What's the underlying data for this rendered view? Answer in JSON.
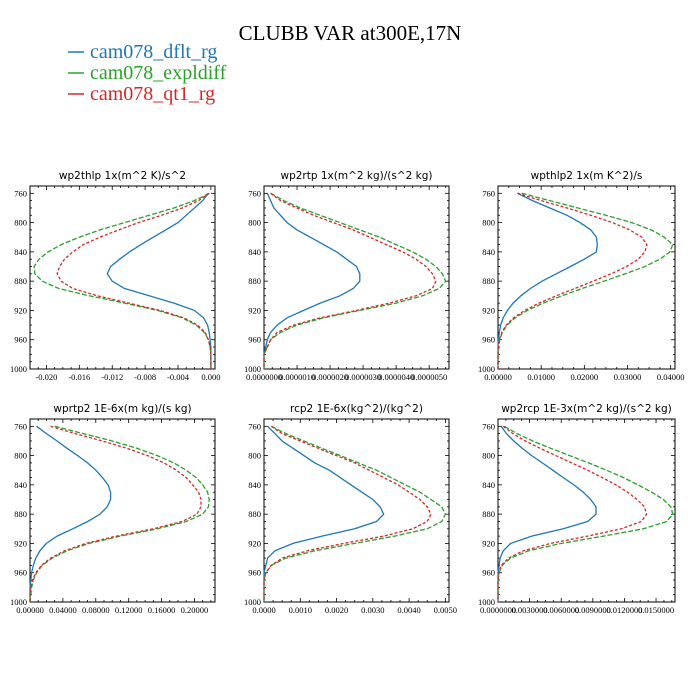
{
  "title": "CLUBB VAR at300E,17N",
  "legend": [
    {
      "label": "cam078_dflt_rg",
      "color": "#1f77b4"
    },
    {
      "label": "cam078_expldiff",
      "color": "#2ca02c"
    },
    {
      "label": "cam078_qt1_rg",
      "color": "#d62728"
    }
  ],
  "chart_data": [
    {
      "type": "line",
      "title": "wp2thlp  1x(m^2 K)/s^2",
      "xlim": [
        -0.022,
        0.0005
      ],
      "ylim": [
        1000,
        750
      ],
      "xticks": [
        -0.02,
        -0.016,
        -0.012,
        -0.008,
        -0.004,
        0.0
      ],
      "xtick_labels": [
        "-0.020",
        "-0.016",
        "-0.012",
        "-0.008",
        "-0.004",
        "0.000"
      ],
      "yticks": [
        760,
        800,
        840,
        880,
        920,
        960,
        1000
      ],
      "y": [
        760,
        770,
        780,
        790,
        800,
        810,
        820,
        830,
        840,
        850,
        860,
        870,
        880,
        890,
        900,
        910,
        920,
        930,
        940,
        950,
        960,
        970,
        980,
        990,
        1000
      ],
      "series": [
        {
          "name": "cam078_dflt_rg",
          "color": "#1f77b4",
          "dash": "",
          "values": [
            -0.0003,
            -0.001,
            -0.002,
            -0.003,
            -0.004,
            -0.0055,
            -0.007,
            -0.0085,
            -0.0099,
            -0.0111,
            -0.0122,
            -0.0126,
            -0.012,
            -0.0105,
            -0.0075,
            -0.0045,
            -0.002,
            -0.0009,
            -0.0004,
            -0.0002,
            -0.0001,
            0.0,
            0.0,
            0.0,
            0.0
          ]
        },
        {
          "name": "cam078_expldiff",
          "color": "#2ca02c",
          "dash": "5,2",
          "values": [
            -0.0002,
            -0.002,
            -0.0045,
            -0.0075,
            -0.0105,
            -0.0135,
            -0.016,
            -0.0182,
            -0.0198,
            -0.0209,
            -0.0215,
            -0.0214,
            -0.0205,
            -0.0185,
            -0.0148,
            -0.0105,
            -0.0065,
            -0.0035,
            -0.0018,
            -0.0008,
            -0.0003,
            -0.0001,
            0.0,
            0.0,
            0.0
          ]
        },
        {
          "name": "cam078_qt1_rg",
          "color": "#d62728",
          "dash": "3,2",
          "values": [
            -0.0002,
            -0.0015,
            -0.0035,
            -0.006,
            -0.0088,
            -0.0112,
            -0.0135,
            -0.0155,
            -0.0168,
            -0.0178,
            -0.0184,
            -0.0187,
            -0.0182,
            -0.0168,
            -0.0138,
            -0.01,
            -0.0062,
            -0.0033,
            -0.0016,
            -0.0007,
            -0.0003,
            -0.0001,
            0.0,
            0.0,
            0.0
          ]
        }
      ]
    },
    {
      "type": "line",
      "title": "wp2rtp  1x(m^2 kg)/(s^2 kg)",
      "xlim": [
        0.0,
        5.6e-06
      ],
      "ylim": [
        1000,
        750
      ],
      "xticks": [
        0.0,
        1e-06,
        2e-06,
        3e-06,
        4e-06,
        5e-06
      ],
      "xtick_labels": [
        "0.0000000",
        "0.0000010",
        "0.0000020",
        "0.0000030",
        "0.0000040",
        "0.0000050"
      ],
      "yticks": [
        760,
        800,
        840,
        880,
        920,
        960,
        1000
      ],
      "y": [
        760,
        770,
        780,
        790,
        800,
        810,
        820,
        830,
        840,
        850,
        860,
        870,
        880,
        890,
        900,
        910,
        920,
        930,
        940,
        950,
        960,
        970,
        980,
        990,
        1000
      ],
      "series": [
        {
          "name": "cam078_dflt_rg",
          "color": "#1f77b4",
          "dash": "",
          "values": [
            1e-07,
            2e-07,
            3e-07,
            5e-07,
            7e-07,
            1e-06,
            1.4e-06,
            1.8e-06,
            2.2e-06,
            2.5e-06,
            2.8e-06,
            2.9e-06,
            2.9e-06,
            2.7e-06,
            2.3e-06,
            1.7e-06,
            1.2e-06,
            7e-07,
            4e-07,
            2e-07,
            1e-07,
            5e-08,
            0.0,
            0.0,
            0.0
          ]
        },
        {
          "name": "cam078_expldiff",
          "color": "#2ca02c",
          "dash": "5,2",
          "values": [
            2e-07,
            6e-07,
            1.1e-06,
            1.7e-06,
            2.3e-06,
            2.9e-06,
            3.5e-06,
            4e-06,
            4.5e-06,
            4.9e-06,
            5.2e-06,
            5.4e-06,
            5.5e-06,
            5.3e-06,
            4.8e-06,
            4e-06,
            2.9e-06,
            1.8e-06,
            1e-06,
            5e-07,
            2e-07,
            1e-07,
            0.0,
            0.0,
            0.0
          ]
        },
        {
          "name": "cam078_qt1_rg",
          "color": "#d62728",
          "dash": "3,2",
          "values": [
            2e-07,
            5e-07,
            1e-06,
            1.5e-06,
            2.1e-06,
            2.7e-06,
            3.2e-06,
            3.7e-06,
            4.2e-06,
            4.6e-06,
            4.9e-06,
            5.1e-06,
            5.2e-06,
            5.1e-06,
            4.6e-06,
            3.8e-06,
            2.8e-06,
            1.7e-06,
            9e-07,
            4e-07,
            2e-07,
            1e-07,
            0.0,
            0.0,
            0.0
          ]
        }
      ]
    },
    {
      "type": "line",
      "title": "wpthlp2  1x(m K^2)/s",
      "xlim": [
        0.0,
        0.041
      ],
      "ylim": [
        1000,
        750
      ],
      "xticks": [
        0.0,
        0.01,
        0.02,
        0.03,
        0.04
      ],
      "xtick_labels": [
        "0.00000",
        "0.01000",
        "0.02000",
        "0.03000",
        "0.04000"
      ],
      "yticks": [
        760,
        800,
        840,
        880,
        920,
        960,
        1000
      ],
      "y": [
        760,
        770,
        780,
        790,
        800,
        810,
        820,
        830,
        840,
        850,
        860,
        870,
        880,
        890,
        900,
        910,
        920,
        930,
        940,
        950,
        960,
        970,
        980,
        990,
        1000
      ],
      "series": [
        {
          "name": "cam078_dflt_rg",
          "color": "#1f77b4",
          "dash": "",
          "values": [
            0.0045,
            0.008,
            0.012,
            0.016,
            0.019,
            0.0215,
            0.0228,
            0.023,
            0.0228,
            0.02,
            0.0168,
            0.0135,
            0.0102,
            0.0075,
            0.0053,
            0.0035,
            0.0022,
            0.0012,
            0.0006,
            0.0003,
            0.0001,
            0.0,
            0.0,
            0.0,
            0.0
          ]
        },
        {
          "name": "cam078_expldiff",
          "color": "#2ca02c",
          "dash": "5,2",
          "values": [
            0.0055,
            0.012,
            0.0185,
            0.025,
            0.031,
            0.0355,
            0.0385,
            0.0405,
            0.0398,
            0.0375,
            0.034,
            0.0295,
            0.0245,
            0.0195,
            0.0148,
            0.0105,
            0.0068,
            0.004,
            0.0021,
            0.001,
            0.0004,
            0.0001,
            0.0,
            0.0,
            0.0
          ]
        },
        {
          "name": "cam078_qt1_rg",
          "color": "#d62728",
          "dash": "3,2",
          "values": [
            0.0045,
            0.01,
            0.016,
            0.0215,
            0.0265,
            0.0305,
            0.0333,
            0.0345,
            0.034,
            0.0325,
            0.0298,
            0.0262,
            0.022,
            0.0178,
            0.0135,
            0.0095,
            0.0062,
            0.0036,
            0.0019,
            0.0009,
            0.0003,
            0.0001,
            0.0,
            0.0,
            0.0
          ]
        }
      ]
    },
    {
      "type": "line",
      "title": "wprtp2  1E-6x(m kg)/(s kg)",
      "xlim": [
        0.0,
        0.225
      ],
      "ylim": [
        1000,
        750
      ],
      "xticks": [
        0.0,
        0.04,
        0.08,
        0.12,
        0.16,
        0.2
      ],
      "xtick_labels": [
        "0.00000",
        "0.04000",
        "0.08000",
        "0.12000",
        "0.16000",
        "0.20000"
      ],
      "yticks": [
        760,
        800,
        840,
        880,
        920,
        960,
        1000
      ],
      "y": [
        760,
        770,
        780,
        790,
        800,
        810,
        820,
        830,
        840,
        850,
        860,
        870,
        880,
        890,
        900,
        910,
        920,
        930,
        940,
        950,
        960,
        970,
        980,
        990,
        1000
      ],
      "series": [
        {
          "name": "cam078_dflt_rg",
          "color": "#1f77b4",
          "dash": "",
          "values": [
            0.008,
            0.02,
            0.033,
            0.045,
            0.058,
            0.07,
            0.08,
            0.088,
            0.095,
            0.098,
            0.098,
            0.094,
            0.085,
            0.07,
            0.052,
            0.033,
            0.02,
            0.012,
            0.007,
            0.004,
            0.002,
            0.001,
            0.0,
            0.0,
            0.0
          ]
        },
        {
          "name": "cam078_expldiff",
          "color": "#2ca02c",
          "dash": "5,2",
          "values": [
            0.03,
            0.065,
            0.1,
            0.13,
            0.155,
            0.175,
            0.19,
            0.202,
            0.21,
            0.216,
            0.218,
            0.217,
            0.21,
            0.19,
            0.155,
            0.11,
            0.072,
            0.045,
            0.027,
            0.015,
            0.008,
            0.004,
            0.002,
            0.001,
            0.0
          ]
        },
        {
          "name": "cam078_qt1_rg",
          "color": "#d62728",
          "dash": "3,2",
          "values": [
            0.025,
            0.055,
            0.088,
            0.118,
            0.143,
            0.163,
            0.178,
            0.19,
            0.198,
            0.205,
            0.208,
            0.208,
            0.203,
            0.185,
            0.15,
            0.105,
            0.068,
            0.042,
            0.025,
            0.014,
            0.007,
            0.003,
            0.001,
            0.0,
            0.0
          ]
        }
      ]
    },
    {
      "type": "line",
      "title": "rcp2  1E-6x(kg^2)/(kg^2)",
      "xlim": [
        0.0,
        0.0051
      ],
      "ylim": [
        1000,
        750
      ],
      "xticks": [
        0.0,
        0.001,
        0.002,
        0.003,
        0.004,
        0.005
      ],
      "xtick_labels": [
        "0.0000",
        "0.0010",
        "0.0020",
        "0.0030",
        "0.0040",
        "0.0050"
      ],
      "yticks": [
        760,
        800,
        840,
        880,
        920,
        960,
        1000
      ],
      "y": [
        760,
        770,
        780,
        790,
        800,
        810,
        820,
        830,
        840,
        850,
        860,
        870,
        880,
        890,
        900,
        910,
        920,
        930,
        940,
        950,
        960,
        970,
        980,
        990,
        1000
      ],
      "series": [
        {
          "name": "cam078_dflt_rg",
          "color": "#1f77b4",
          "dash": "",
          "values": [
            0.0001,
            0.0003,
            0.0005,
            0.0008,
            0.0011,
            0.0014,
            0.0018,
            0.0021,
            0.0024,
            0.0027,
            0.003,
            0.0032,
            0.0033,
            0.0031,
            0.0025,
            0.0016,
            0.0008,
            0.0003,
            0.0001,
            5e-05,
            0.0,
            0.0,
            0.0,
            0.0,
            0.0
          ]
        },
        {
          "name": "cam078_expldiff",
          "color": "#2ca02c",
          "dash": "5,2",
          "values": [
            0.0002,
            0.0006,
            0.0011,
            0.0016,
            0.0021,
            0.0026,
            0.0031,
            0.0035,
            0.0039,
            0.0043,
            0.0046,
            0.0049,
            0.005,
            0.0049,
            0.0045,
            0.0036,
            0.0025,
            0.0014,
            0.0006,
            0.0002,
            5e-05,
            0.0,
            0.0,
            0.0,
            0.0
          ]
        },
        {
          "name": "cam078_qt1_rg",
          "color": "#d62728",
          "dash": "3,2",
          "values": [
            0.0002,
            0.0005,
            0.001,
            0.0015,
            0.002,
            0.0025,
            0.0029,
            0.0033,
            0.0037,
            0.004,
            0.0043,
            0.0045,
            0.0046,
            0.0045,
            0.0041,
            0.0033,
            0.0022,
            0.0012,
            0.0005,
            0.0002,
            5e-05,
            0.0,
            0.0,
            0.0,
            0.0
          ]
        }
      ]
    },
    {
      "type": "line",
      "title": "wp2rcp  1E-3x(m^2 kg)/(s^2 kg)",
      "xlim": [
        0.0,
        0.0168
      ],
      "ylim": [
        1000,
        750
      ],
      "xticks": [
        0.0,
        0.003,
        0.006,
        0.009,
        0.012,
        0.015
      ],
      "xtick_labels": [
        "0.0000000",
        "0.0030000",
        "0.0060000",
        "0.0090000",
        "0.0120000",
        "0.0150000"
      ],
      "yticks": [
        760,
        800,
        840,
        880,
        920,
        960,
        1000
      ],
      "y": [
        760,
        770,
        780,
        790,
        800,
        810,
        820,
        830,
        840,
        850,
        860,
        870,
        880,
        890,
        900,
        910,
        920,
        930,
        940,
        950,
        960,
        970,
        980,
        990,
        1000
      ],
      "series": [
        {
          "name": "cam078_dflt_rg",
          "color": "#1f77b4",
          "dash": "",
          "values": [
            0.0003,
            0.0008,
            0.0015,
            0.0023,
            0.0032,
            0.0042,
            0.0052,
            0.0062,
            0.0072,
            0.0081,
            0.0088,
            0.0093,
            0.0093,
            0.0085,
            0.0062,
            0.0032,
            0.0012,
            0.0005,
            0.0002,
            0.0001,
            0.0,
            0.0,
            0.0,
            0.0,
            0.0
          ]
        },
        {
          "name": "cam078_expldiff",
          "color": "#2ca02c",
          "dash": "5,2",
          "values": [
            0.0006,
            0.0018,
            0.0033,
            0.005,
            0.0068,
            0.0086,
            0.0103,
            0.0119,
            0.0133,
            0.0146,
            0.0157,
            0.0164,
            0.0166,
            0.016,
            0.0138,
            0.01,
            0.006,
            0.0029,
            0.0012,
            0.0004,
            0.0001,
            0.0,
            0.0,
            0.0,
            0.0
          ]
        },
        {
          "name": "cam078_qt1_rg",
          "color": "#d62728",
          "dash": "3,2",
          "values": [
            0.0005,
            0.0014,
            0.0026,
            0.004,
            0.0055,
            0.007,
            0.0085,
            0.0099,
            0.0112,
            0.0123,
            0.0132,
            0.0139,
            0.0141,
            0.0136,
            0.0117,
            0.0085,
            0.005,
            0.0024,
            0.001,
            0.0003,
            0.0001,
            0.0,
            0.0,
            0.0,
            0.0
          ]
        }
      ]
    }
  ]
}
